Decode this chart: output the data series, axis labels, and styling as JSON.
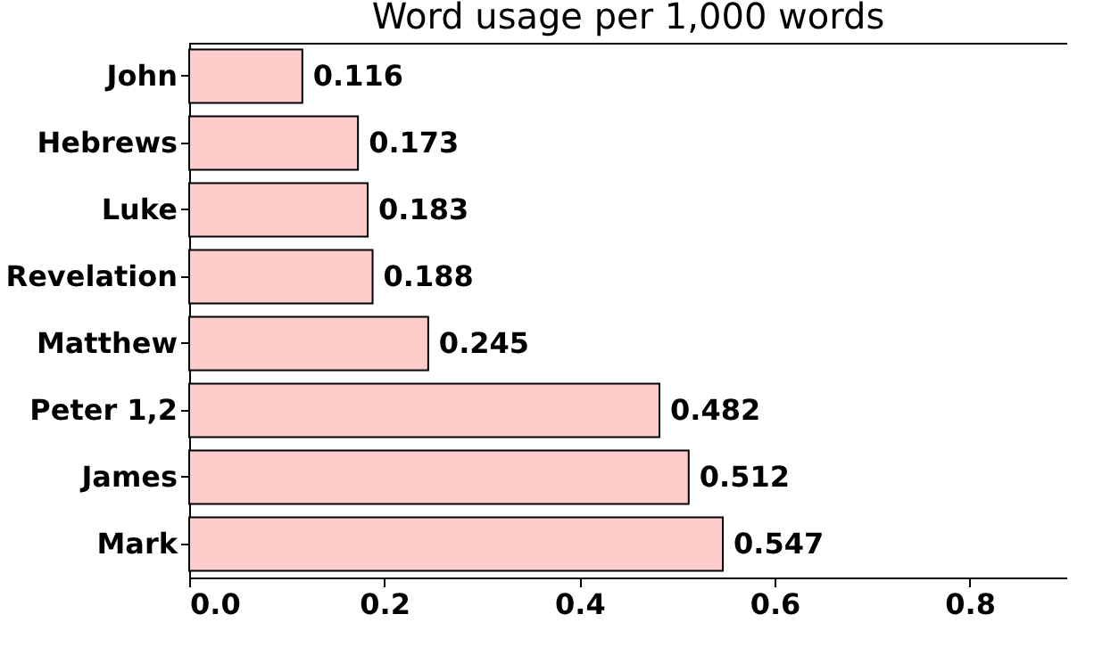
{
  "chart_data": {
    "type": "bar",
    "orientation": "horizontal",
    "title": "Word usage per 1,000 words",
    "categories": [
      "John",
      "Hebrews",
      "Luke",
      "Revelation",
      "Matthew",
      "Peter 1,2",
      "James",
      "Mark"
    ],
    "values": [
      0.116,
      0.173,
      0.183,
      0.188,
      0.245,
      0.482,
      0.512,
      0.547
    ],
    "color": "#ffcccc",
    "xlim": [
      0,
      0.9
    ],
    "xticks": [
      {
        "value": 0,
        "label": "0.0"
      },
      0.2,
      0.4,
      0.6,
      0.8
    ],
    "grid": false,
    "data_labels": true
  }
}
